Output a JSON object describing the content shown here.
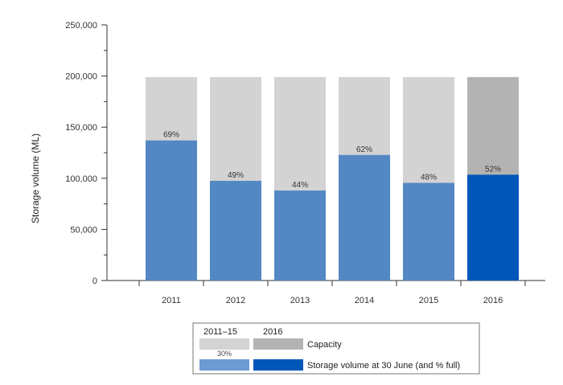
{
  "chart_data": {
    "type": "bar",
    "ylabel": "Storage volume (ML)",
    "xlabel": "",
    "title": "",
    "ylim": [
      0,
      250000
    ],
    "yticks": [
      0,
      50000,
      100000,
      150000,
      200000,
      250000
    ],
    "ytick_labels": [
      "0",
      "50,000",
      "100,000",
      "150,000",
      "200,000",
      "250,000"
    ],
    "categories": [
      "2011",
      "2012",
      "2013",
      "2014",
      "2015",
      "2016"
    ],
    "series": [
      {
        "name": "Capacity",
        "values": [
          199000,
          199000,
          199000,
          199000,
          199000,
          199000
        ]
      },
      {
        "name": "Storage volume at 30 June (and % full)",
        "values": [
          137000,
          97500,
          88000,
          122800,
          95500,
          103500
        ],
        "labels": [
          "69%",
          "49%",
          "44%",
          "62%",
          "48%",
          "52%"
        ]
      }
    ],
    "colors": {
      "capacity_2011_15": "#d3d3d3",
      "capacity_2016": "#b3b3b3",
      "storage_2011_15": "#5388c4",
      "storage_2016": "#0057b8"
    },
    "grid": false,
    "legend_position": "bottom",
    "legend": {
      "column_headers": [
        "2011–15",
        "2016"
      ],
      "sample_label": "30%",
      "rows": [
        "Capacity",
        "Storage volume at 30 June (and % full)"
      ]
    }
  }
}
